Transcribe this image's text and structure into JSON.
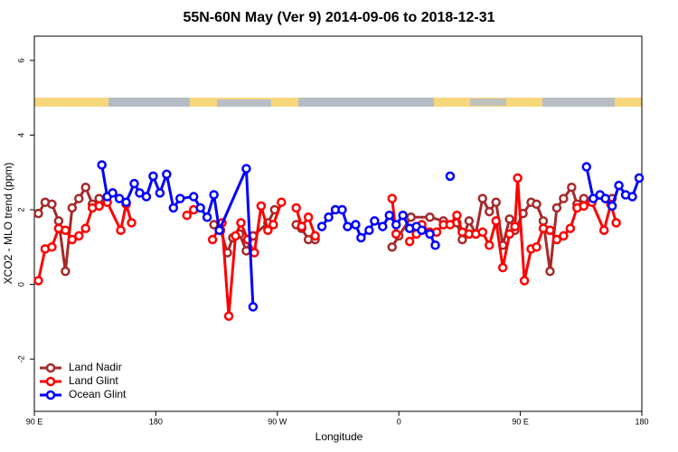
{
  "chart_data": {
    "type": "line",
    "title": "55N-60N May (Ver 9)   2014-09-06 to 2018-12-31",
    "x_label": "Longitude",
    "y_label": "XCO2 - MLO trend (ppm)",
    "xlim": [
      90,
      540
    ],
    "ylim": [
      -3.4,
      6.65
    ],
    "xticks": [
      {
        "value": 90,
        "label": "90 E"
      },
      180,
      {
        "value": 270,
        "label": "90 W"
      },
      {
        "value": 360,
        "label": "0"
      },
      {
        "value": 450,
        "label": "90 E"
      },
      {
        "value": 540,
        "label": "180"
      }
    ],
    "yticks": [
      -2,
      0,
      2,
      4,
      6
    ],
    "legend": "bottom-left",
    "series": [
      {
        "name": "Land Nadir",
        "color": "#a52a2a",
        "x": [
          93,
          98,
          103,
          108,
          113,
          118,
          123,
          128,
          133,
          138,
          null,
          223,
          228,
          233,
          237,
          242,
          247,
          252,
          263,
          268,
          null,
          284,
          288,
          293,
          298,
          null,
          355,
          360,
          369,
          383,
          393,
          403,
          407,
          412,
          417,
          422,
          427,
          432,
          437,
          442,
          446,
          452,
          458,
          462,
          467,
          472,
          477,
          482,
          488,
          492,
          497,
          518
        ],
        "values": [
          1.9,
          2.2,
          2.15,
          1.7,
          0.35,
          2.05,
          2.3,
          2.6,
          2.15,
          2.3,
          null,
          1.6,
          1.45,
          0.85,
          1.25,
          1.35,
          0.9,
          1.3,
          1.65,
          2.0,
          null,
          1.6,
          1.5,
          1.2,
          1.2,
          null,
          1.0,
          1.3,
          1.8,
          1.8,
          1.7,
          1.65,
          1.2,
          1.7,
          1.35,
          2.3,
          1.95,
          2.2,
          1.05,
          1.75,
          1.45,
          1.9,
          2.2,
          2.15,
          1.7,
          0.35,
          2.05,
          2.3,
          2.6,
          2.15,
          2.3,
          2.3
        ]
      },
      {
        "name": "Land Glint",
        "color": "#ff0000",
        "x": [
          93,
          98,
          103,
          108,
          113,
          118,
          123,
          128,
          133,
          138,
          144,
          154,
          158,
          162,
          null,
          203,
          208,
          null,
          222,
          229,
          234,
          239,
          243,
          248,
          253,
          258,
          263,
          267,
          273,
          null,
          284,
          288,
          293,
          298,
          null,
          355,
          358,
          null,
          368,
          373,
          377,
          383,
          388,
          393,
          398,
          403,
          407,
          412,
          417,
          422,
          427,
          432,
          437,
          442,
          446,
          448,
          453,
          458,
          462,
          467,
          472,
          477,
          482,
          487,
          492,
          497,
          503,
          512,
          517,
          521
        ],
        "values": [
          0.1,
          0.95,
          1.0,
          1.5,
          1.45,
          1.2,
          1.3,
          1.5,
          2.05,
          2.1,
          2.2,
          1.45,
          2.15,
          1.65,
          null,
          1.85,
          2.0,
          null,
          1.2,
          1.65,
          -0.85,
          1.3,
          1.65,
          1.2,
          0.85,
          2.1,
          1.45,
          1.6,
          2.2,
          null,
          2.05,
          1.55,
          1.8,
          1.3,
          null,
          2.3,
          1.35,
          null,
          1.15,
          1.35,
          1.6,
          1.4,
          1.4,
          1.6,
          1.6,
          1.85,
          1.4,
          1.35,
          1.35,
          1.4,
          1.05,
          1.7,
          0.45,
          1.35,
          1.55,
          2.85,
          0.1,
          0.95,
          1.0,
          1.5,
          1.45,
          1.2,
          1.3,
          1.5,
          2.05,
          2.1,
          2.2,
          1.45,
          2.15,
          1.65
        ]
      },
      {
        "name": "Ocean Glint",
        "color": "#0000ff",
        "x": [
          140,
          144,
          148,
          153,
          158,
          164,
          168,
          173,
          178,
          183,
          188,
          193,
          198,
          208,
          213,
          218,
          223,
          227,
          247,
          252,
          null,
          303,
          308,
          313,
          318,
          322,
          328,
          332,
          338,
          342,
          348,
          353,
          358,
          363,
          368,
          373,
          377,
          383,
          387,
          null,
          398,
          null,
          499,
          504,
          509,
          513,
          518,
          523,
          528,
          533,
          538
        ],
        "values": [
          3.2,
          2.35,
          2.45,
          2.3,
          2.2,
          2.7,
          2.45,
          2.35,
          2.9,
          2.45,
          2.95,
          2.05,
          2.3,
          2.35,
          2.05,
          1.8,
          2.4,
          1.45,
          3.1,
          -0.6,
          null,
          1.55,
          1.8,
          2.0,
          2.0,
          1.55,
          1.6,
          1.25,
          1.45,
          1.7,
          1.55,
          1.85,
          1.6,
          1.85,
          1.5,
          1.55,
          1.45,
          1.35,
          1.05,
          null,
          2.9,
          null,
          3.15,
          2.3,
          2.4,
          2.3,
          2.1,
          2.65,
          2.4,
          2.35,
          2.85
        ]
      }
    ]
  }
}
